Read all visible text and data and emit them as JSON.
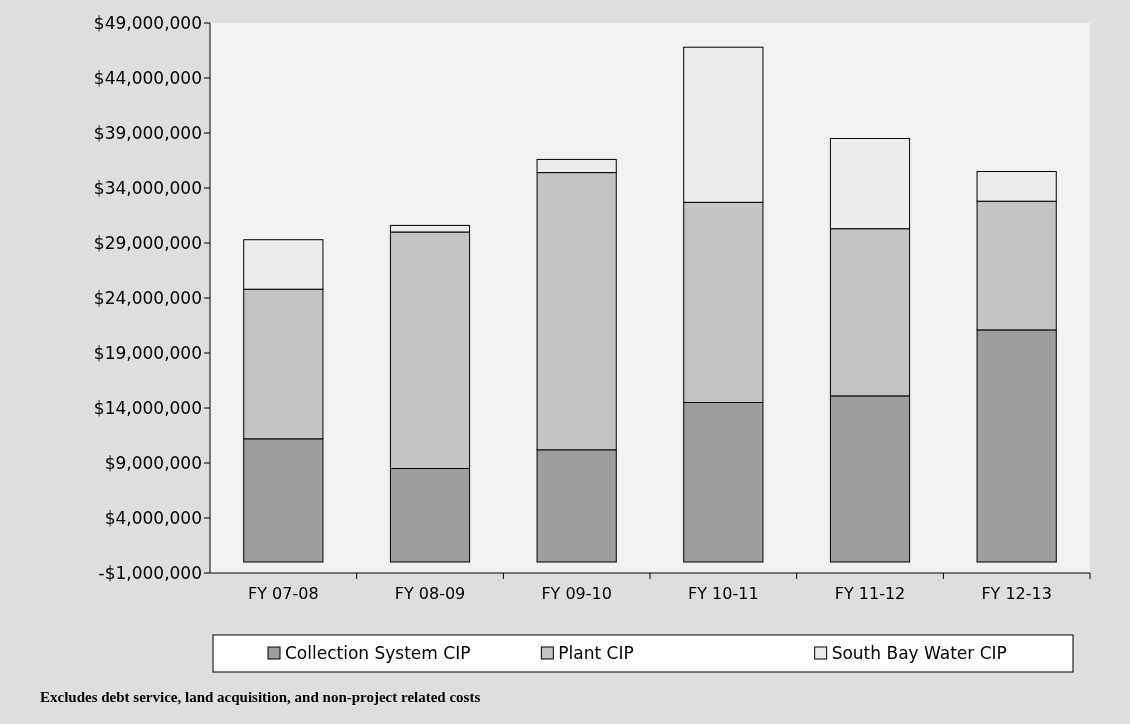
{
  "chart_data": {
    "type": "bar",
    "stacked": true,
    "categories": [
      "FY 07-08",
      "FY 08-09",
      "FY 09-10",
      "FY 10-11",
      "FY 11-12",
      "FY 12-13"
    ],
    "series": [
      {
        "name": "Collection System CIP",
        "color": "#9e9e9e",
        "values": [
          11200000,
          8500000,
          10200000,
          14500000,
          15100000,
          21100000
        ]
      },
      {
        "name": "Plant CIP",
        "color": "#c4c4c4",
        "values": [
          13600000,
          21500000,
          25200000,
          18200000,
          15200000,
          11700000
        ]
      },
      {
        "name": "South Bay Water CIP",
        "color": "#ececec",
        "values": [
          4500000,
          600000,
          1200000,
          14100000,
          8200000,
          2700000
        ]
      }
    ],
    "ylim": [
      -1000000,
      49000000
    ],
    "yticks": [
      {
        "value": -1000000,
        "label": "-$1,000,000"
      },
      {
        "value": 4000000,
        "label": "$4,000,000"
      },
      {
        "value": 9000000,
        "label": "$9,000,000"
      },
      {
        "value": 14000000,
        "label": "$14,000,000"
      },
      {
        "value": 19000000,
        "label": "$19,000,000"
      },
      {
        "value": 24000000,
        "label": "$24,000,000"
      },
      {
        "value": 29000000,
        "label": "$29,000,000"
      },
      {
        "value": 34000000,
        "label": "$34,000,000"
      },
      {
        "value": 39000000,
        "label": "$39,000,000"
      },
      {
        "value": 44000000,
        "label": "$44,000,000"
      },
      {
        "value": 49000000,
        "label": "$49,000,000"
      }
    ],
    "legend": "bottom",
    "grid": false,
    "annotations": [
      "Excludes debt service, land acquisition, and non-project related costs"
    ]
  }
}
